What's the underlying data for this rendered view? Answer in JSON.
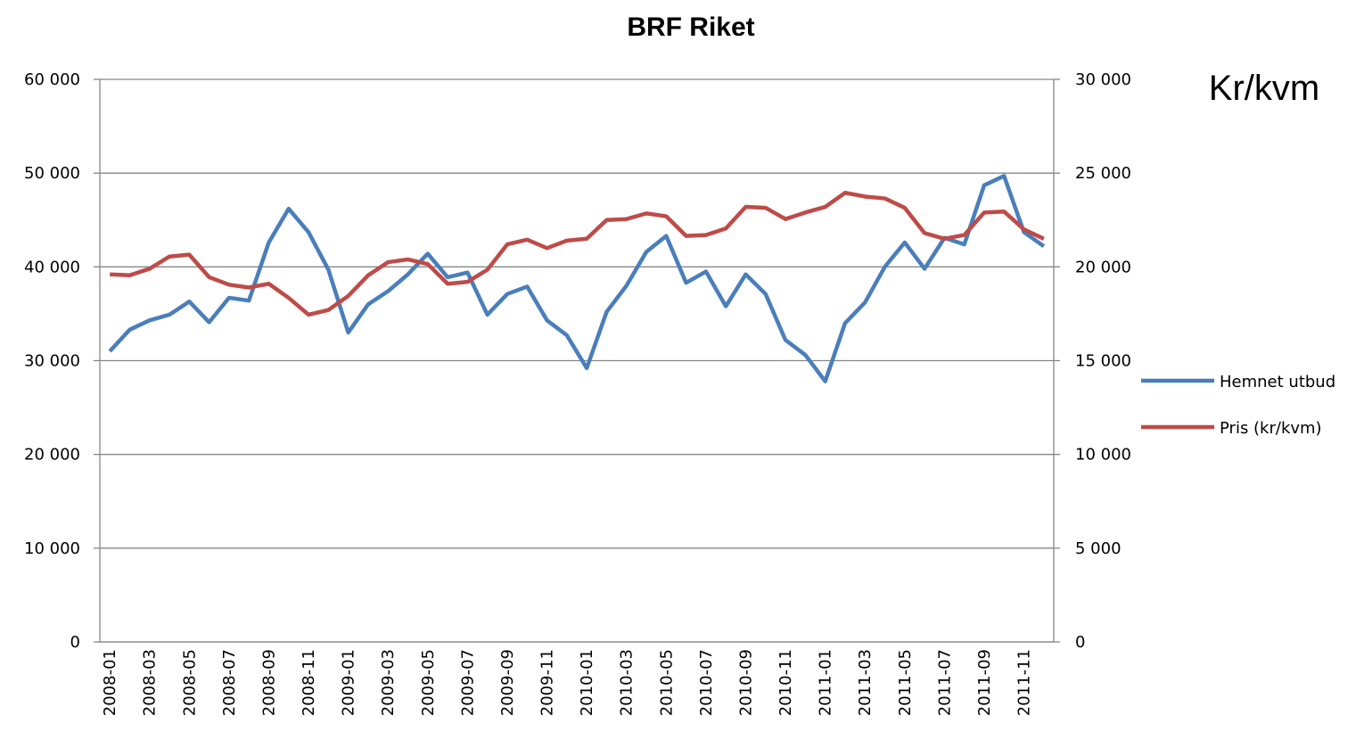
{
  "chart_data": {
    "type": "line",
    "title": "BRF Riket",
    "annotation": "Kr/kvm",
    "categories": [
      "2008-01",
      null,
      "2008-03",
      null,
      "2008-05",
      null,
      "2008-07",
      null,
      "2008-09",
      null,
      "2008-11",
      null,
      "2009-01",
      null,
      "2009-03",
      null,
      "2009-05",
      null,
      "2009-07",
      null,
      "2009-09",
      null,
      "2009-11",
      null,
      "2010-01",
      null,
      "2010-03",
      null,
      "2010-05",
      null,
      "2010-07",
      null,
      "2010-09",
      null,
      "2010-11",
      null,
      "2011-01",
      null,
      "2011-03",
      null,
      "2011-05",
      null,
      "2011-07",
      null,
      "2011-09",
      null,
      "2011-11",
      null
    ],
    "series": [
      {
        "name": "Hemnet utbud",
        "color": "#4a7ebb",
        "axis": "y",
        "values": [
          31000,
          33300,
          34300,
          34900,
          36300,
          34100,
          36700,
          36400,
          42600,
          46200,
          43700,
          39700,
          33000,
          36000,
          37400,
          39200,
          41400,
          38900,
          39400,
          34900,
          37100,
          37900,
          34300,
          32700,
          29200,
          35200,
          38000,
          41600,
          43300,
          38300,
          39500,
          35800,
          39200,
          37100,
          32200,
          30600,
          27800,
          34000,
          36200,
          40000,
          42600,
          39800,
          43100,
          42400,
          48700,
          49700,
          43700,
          42200
        ]
      },
      {
        "name": "Pris (kr/kvm)",
        "color": "#be4b48",
        "axis": "y2",
        "values": [
          19600,
          19550,
          19900,
          20550,
          20650,
          19450,
          19050,
          18900,
          19100,
          18350,
          17450,
          17700,
          18450,
          19550,
          20250,
          20400,
          20150,
          19100,
          19200,
          19850,
          21200,
          21450,
          21000,
          21400,
          21500,
          22500,
          22550,
          22850,
          22700,
          21650,
          21700,
          22050,
          23200,
          23150,
          22550,
          22900,
          23200,
          23950,
          23750,
          23650,
          23150,
          21800,
          21500,
          21700,
          22900,
          22950,
          22000,
          21500
        ]
      }
    ],
    "ylim": [
      0,
      60000
    ],
    "yticks": [
      0,
      {
        "value": 10000,
        "label": "10 000"
      },
      {
        "value": 20000,
        "label": "20 000"
      },
      {
        "value": 30000,
        "label": "30 000"
      },
      {
        "value": 40000,
        "label": "40 000"
      },
      {
        "value": 50000,
        "label": "50 000"
      },
      {
        "value": 60000,
        "label": "60 000"
      }
    ],
    "y2lim": [
      0,
      30000
    ],
    "y2ticks": [
      0,
      {
        "value": 5000,
        "label": "5 000"
      },
      {
        "value": 10000,
        "label": "10 000"
      },
      {
        "value": 15000,
        "label": "15 000"
      },
      {
        "value": 20000,
        "label": "20 000"
      },
      {
        "value": 25000,
        "label": "25 000"
      },
      {
        "value": 30000,
        "label": "30 000"
      }
    ],
    "grid": true,
    "legend": "right"
  }
}
